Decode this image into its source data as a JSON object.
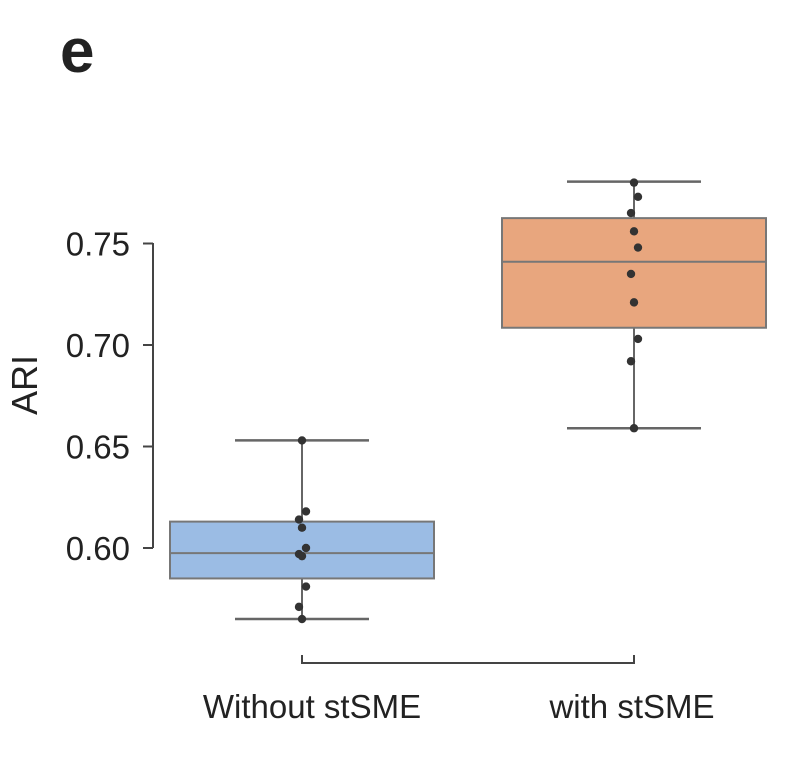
{
  "panel_label": "e",
  "chart_data": {
    "type": "box",
    "title": "",
    "xlabel": "",
    "ylabel": "ARI",
    "ylim": [
      0.55,
      0.79
    ],
    "yticks": [
      0.6,
      0.65,
      0.7,
      0.75
    ],
    "ytick_labels": [
      "0.60",
      "0.65",
      "0.70",
      "0.75"
    ],
    "grid": false,
    "categories": [
      "Without stSME",
      "with stSME"
    ],
    "series": [
      {
        "name": "Without stSME",
        "color": "#9bbce4",
        "whisker_low": 0.565,
        "q1": 0.585,
        "median": 0.5975,
        "q3": 0.613,
        "whisker_high": 0.653,
        "points": [
          0.653,
          0.618,
          0.614,
          0.61,
          0.6,
          0.597,
          0.596,
          0.581,
          0.571,
          0.565
        ]
      },
      {
        "name": "with stSME",
        "color": "#e8a67e",
        "whisker_low": 0.659,
        "q1": 0.7085,
        "median": 0.741,
        "q3": 0.7625,
        "whisker_high": 0.7805,
        "points": [
          0.78,
          0.773,
          0.765,
          0.756,
          0.748,
          0.735,
          0.721,
          0.703,
          0.692,
          0.659
        ]
      }
    ]
  }
}
